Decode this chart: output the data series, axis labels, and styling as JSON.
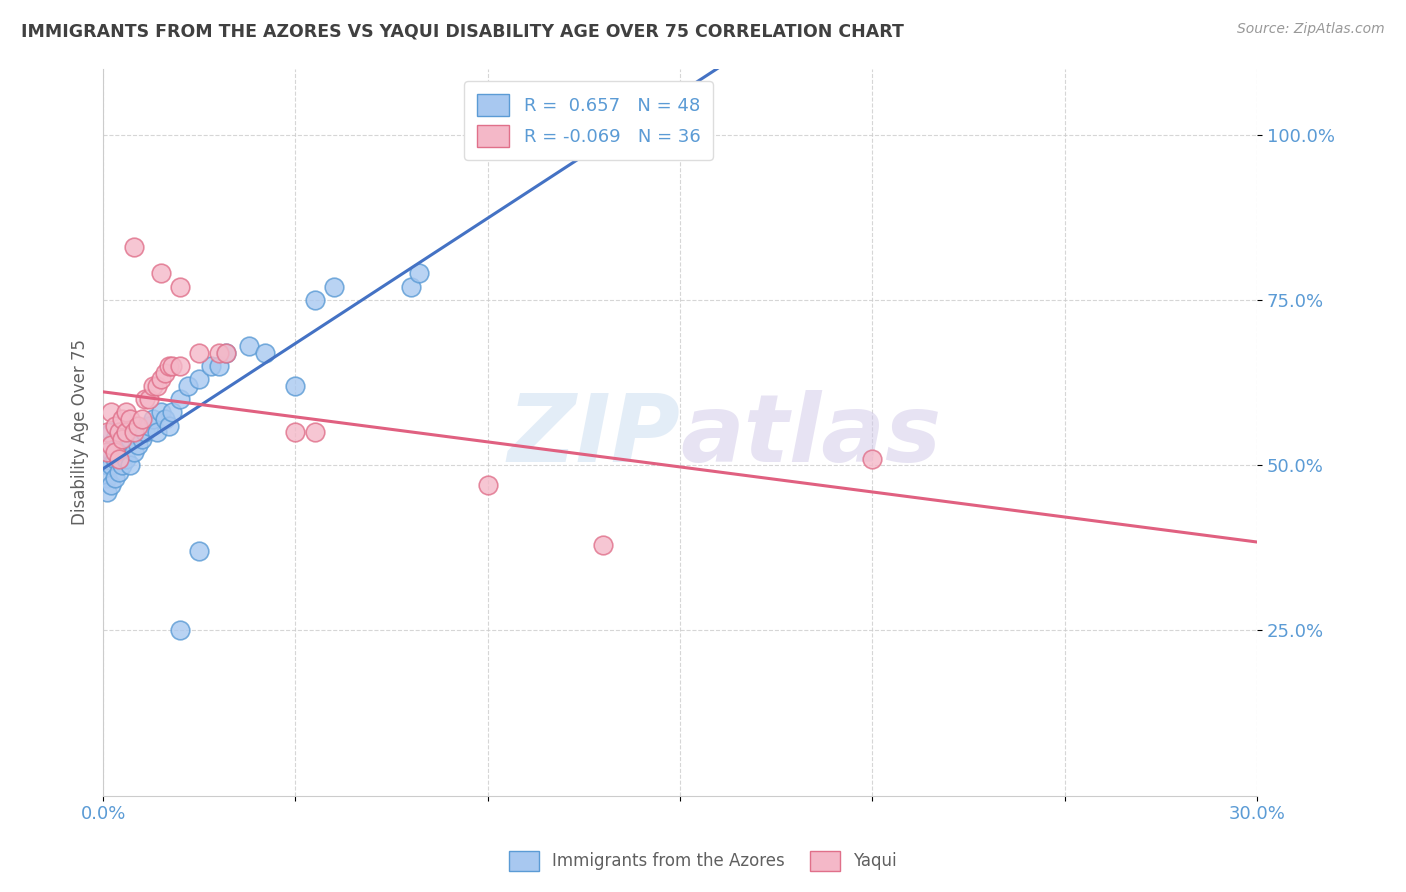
{
  "title": "IMMIGRANTS FROM THE AZORES VS YAQUI DISABILITY AGE OVER 75 CORRELATION CHART",
  "source": "Source: ZipAtlas.com",
  "ylabel": "Disability Age Over 75",
  "x_min": 0.0,
  "x_max": 0.3,
  "y_min": 0.0,
  "y_max": 1.1,
  "x_ticks": [
    0.0,
    0.05,
    0.1,
    0.15,
    0.2,
    0.25,
    0.3
  ],
  "y_ticks": [
    0.25,
    0.5,
    0.75,
    1.0
  ],
  "y_tick_labels": [
    "25.0%",
    "50.0%",
    "75.0%",
    "100.0%"
  ],
  "R_blue": 0.657,
  "N_blue": 48,
  "R_pink": -0.069,
  "N_pink": 36,
  "legend_label_blue": "Immigrants from the Azores",
  "legend_label_pink": "Yaqui",
  "watermark_zip": "ZIP",
  "watermark_atlas": "atlas",
  "blue_color": "#A8C8F0",
  "pink_color": "#F4B8C8",
  "blue_edge_color": "#5B9BD5",
  "pink_edge_color": "#E0708A",
  "blue_line_color": "#4472C4",
  "pink_line_color": "#E06080",
  "title_color": "#404040",
  "axis_label_color": "#5B9BD5",
  "ylabel_color": "#606060",
  "blue_scatter_x": [
    0.001,
    0.001,
    0.001,
    0.001,
    0.002,
    0.002,
    0.002,
    0.002,
    0.003,
    0.003,
    0.003,
    0.004,
    0.004,
    0.004,
    0.005,
    0.005,
    0.006,
    0.006,
    0.007,
    0.007,
    0.008,
    0.008,
    0.009,
    0.01,
    0.011,
    0.012,
    0.013,
    0.014,
    0.015,
    0.016,
    0.017,
    0.018,
    0.02,
    0.022,
    0.025,
    0.028,
    0.03,
    0.032,
    0.038,
    0.042,
    0.055,
    0.06,
    0.08,
    0.082,
    0.02,
    0.025,
    0.05,
    0.13
  ],
  "blue_scatter_y": [
    0.52,
    0.5,
    0.48,
    0.46,
    0.55,
    0.52,
    0.5,
    0.47,
    0.54,
    0.51,
    0.48,
    0.55,
    0.52,
    0.49,
    0.53,
    0.5,
    0.55,
    0.51,
    0.54,
    0.5,
    0.56,
    0.52,
    0.53,
    0.54,
    0.55,
    0.56,
    0.57,
    0.55,
    0.58,
    0.57,
    0.56,
    0.58,
    0.6,
    0.62,
    0.63,
    0.65,
    0.65,
    0.67,
    0.68,
    0.67,
    0.75,
    0.77,
    0.77,
    0.79,
    0.25,
    0.37,
    0.62,
    1.0
  ],
  "pink_scatter_x": [
    0.001,
    0.001,
    0.002,
    0.002,
    0.003,
    0.003,
    0.004,
    0.004,
    0.005,
    0.005,
    0.006,
    0.006,
    0.007,
    0.008,
    0.009,
    0.01,
    0.011,
    0.012,
    0.013,
    0.014,
    0.015,
    0.016,
    0.017,
    0.018,
    0.02,
    0.025,
    0.03,
    0.032,
    0.05,
    0.055,
    0.1,
    0.008,
    0.015,
    0.02,
    0.2,
    0.13
  ],
  "pink_scatter_y": [
    0.55,
    0.52,
    0.58,
    0.53,
    0.56,
    0.52,
    0.55,
    0.51,
    0.57,
    0.54,
    0.58,
    0.55,
    0.57,
    0.55,
    0.56,
    0.57,
    0.6,
    0.6,
    0.62,
    0.62,
    0.63,
    0.64,
    0.65,
    0.65,
    0.65,
    0.67,
    0.67,
    0.67,
    0.55,
    0.55,
    0.47,
    0.83,
    0.79,
    0.77,
    0.51,
    0.38
  ]
}
